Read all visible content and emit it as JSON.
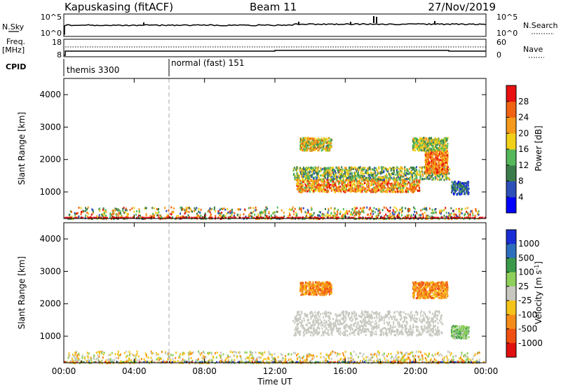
{
  "header": {
    "station": "Kapuskasing (fitACF)",
    "beam": "Beam 11",
    "date": "27/Nov/2019"
  },
  "sky_panel": {
    "left_label": "N.Sky",
    "left_ticks": [
      "10^5",
      "10^0"
    ],
    "right_label": "N.Search",
    "right_ticks": [
      "10^5",
      "10^0"
    ]
  },
  "freq_panel": {
    "left_label_1": "Freq.",
    "left_label_2": "[MHz]",
    "left_ticks": [
      "18",
      "8"
    ],
    "right_label": "Nave",
    "right_ticks": [
      "60",
      "0"
    ]
  },
  "cpid_panel": {
    "label": "CPID",
    "segments": [
      {
        "name": "themis 3300",
        "start_hour": 0
      },
      {
        "name": "normal (fast) 151",
        "start_hour": 6
      }
    ]
  },
  "chart_data": [
    {
      "type": "heatmap",
      "panel": "power",
      "ylabel": "Slant Range [km]",
      "xlabel": "Time UT",
      "x_ticks": [
        "00:00",
        "04:00",
        "08:00",
        "12:00",
        "16:00",
        "20:00",
        "00:00"
      ],
      "xlim_hours": [
        0,
        24
      ],
      "ylim_km": [
        180,
        4500
      ],
      "y_ticks": [
        1000,
        2000,
        3000,
        4000
      ],
      "colorbar": {
        "label": "Power [dB]",
        "ticks": [
          "4",
          "8",
          "12",
          "16",
          "20",
          "24",
          "28"
        ],
        "colors": [
          "#0000ff",
          "#2d4fb8",
          "#3a7d4a",
          "#55b85a",
          "#f2d019",
          "#f59a1a",
          "#f06312",
          "#e81010"
        ]
      },
      "scatter_regions": [
        {
          "t": [
            0.2,
            23.6
          ],
          "r": [
            200,
            560
          ],
          "v": [
            1,
            7
          ]
        },
        {
          "t": [
            13.2,
            20.2
          ],
          "r": [
            1020,
            1420
          ],
          "v": [
            3,
            7
          ]
        },
        {
          "t": [
            13.0,
            21.9
          ],
          "r": [
            1400,
            1800
          ],
          "v": [
            1,
            5
          ]
        },
        {
          "t": [
            20.5,
            21.8
          ],
          "r": [
            1600,
            2300
          ],
          "v": [
            4,
            7
          ]
        },
        {
          "t": [
            13.4,
            15.2
          ],
          "r": [
            2300,
            2700
          ],
          "v": [
            2,
            6
          ]
        },
        {
          "t": [
            19.8,
            21.8
          ],
          "r": [
            2300,
            2700
          ],
          "v": [
            2,
            5
          ]
        },
        {
          "t": [
            22.0,
            23.0
          ],
          "r": [
            950,
            1350
          ],
          "v": [
            0,
            3
          ]
        }
      ]
    },
    {
      "type": "heatmap",
      "panel": "velocity",
      "ylabel": "Slant Range [km]",
      "xlabel": "Time UT",
      "x_ticks": [
        "00:00",
        "04:00",
        "08:00",
        "12:00",
        "16:00",
        "20:00",
        "00:00"
      ],
      "xlim_hours": [
        0,
        24
      ],
      "ylim_km": [
        180,
        4500
      ],
      "y_ticks": [
        1000,
        2000,
        3000,
        4000
      ],
      "colorbar": {
        "label": "Velocity [m s^-1]",
        "ticks": [
          "1000",
          "500",
          "100",
          "25",
          "-25",
          "-100",
          "-500",
          "-1000"
        ],
        "colors": [
          "#1a2ed6",
          "#2d6fbd",
          "#3a9a4a",
          "#8ed05a",
          "#c8c8c0",
          "#f5c41a",
          "#f58c1a",
          "#f05012",
          "#e01010"
        ]
      },
      "scatter_regions": [
        {
          "t": [
            0.2,
            23.6
          ],
          "r": [
            200,
            560
          ],
          "v": [
            3,
            6
          ]
        },
        {
          "t": [
            13.0,
            21.5
          ],
          "r": [
            1050,
            1800
          ],
          "v": [
            4,
            4
          ]
        },
        {
          "t": [
            13.4,
            15.2
          ],
          "r": [
            2300,
            2700
          ],
          "v": [
            5,
            7
          ]
        },
        {
          "t": [
            19.8,
            21.8
          ],
          "r": [
            2200,
            2700
          ],
          "v": [
            5,
            7
          ]
        },
        {
          "t": [
            22.0,
            23.0
          ],
          "r": [
            950,
            1350
          ],
          "v": [
            2,
            4
          ]
        }
      ]
    }
  ]
}
